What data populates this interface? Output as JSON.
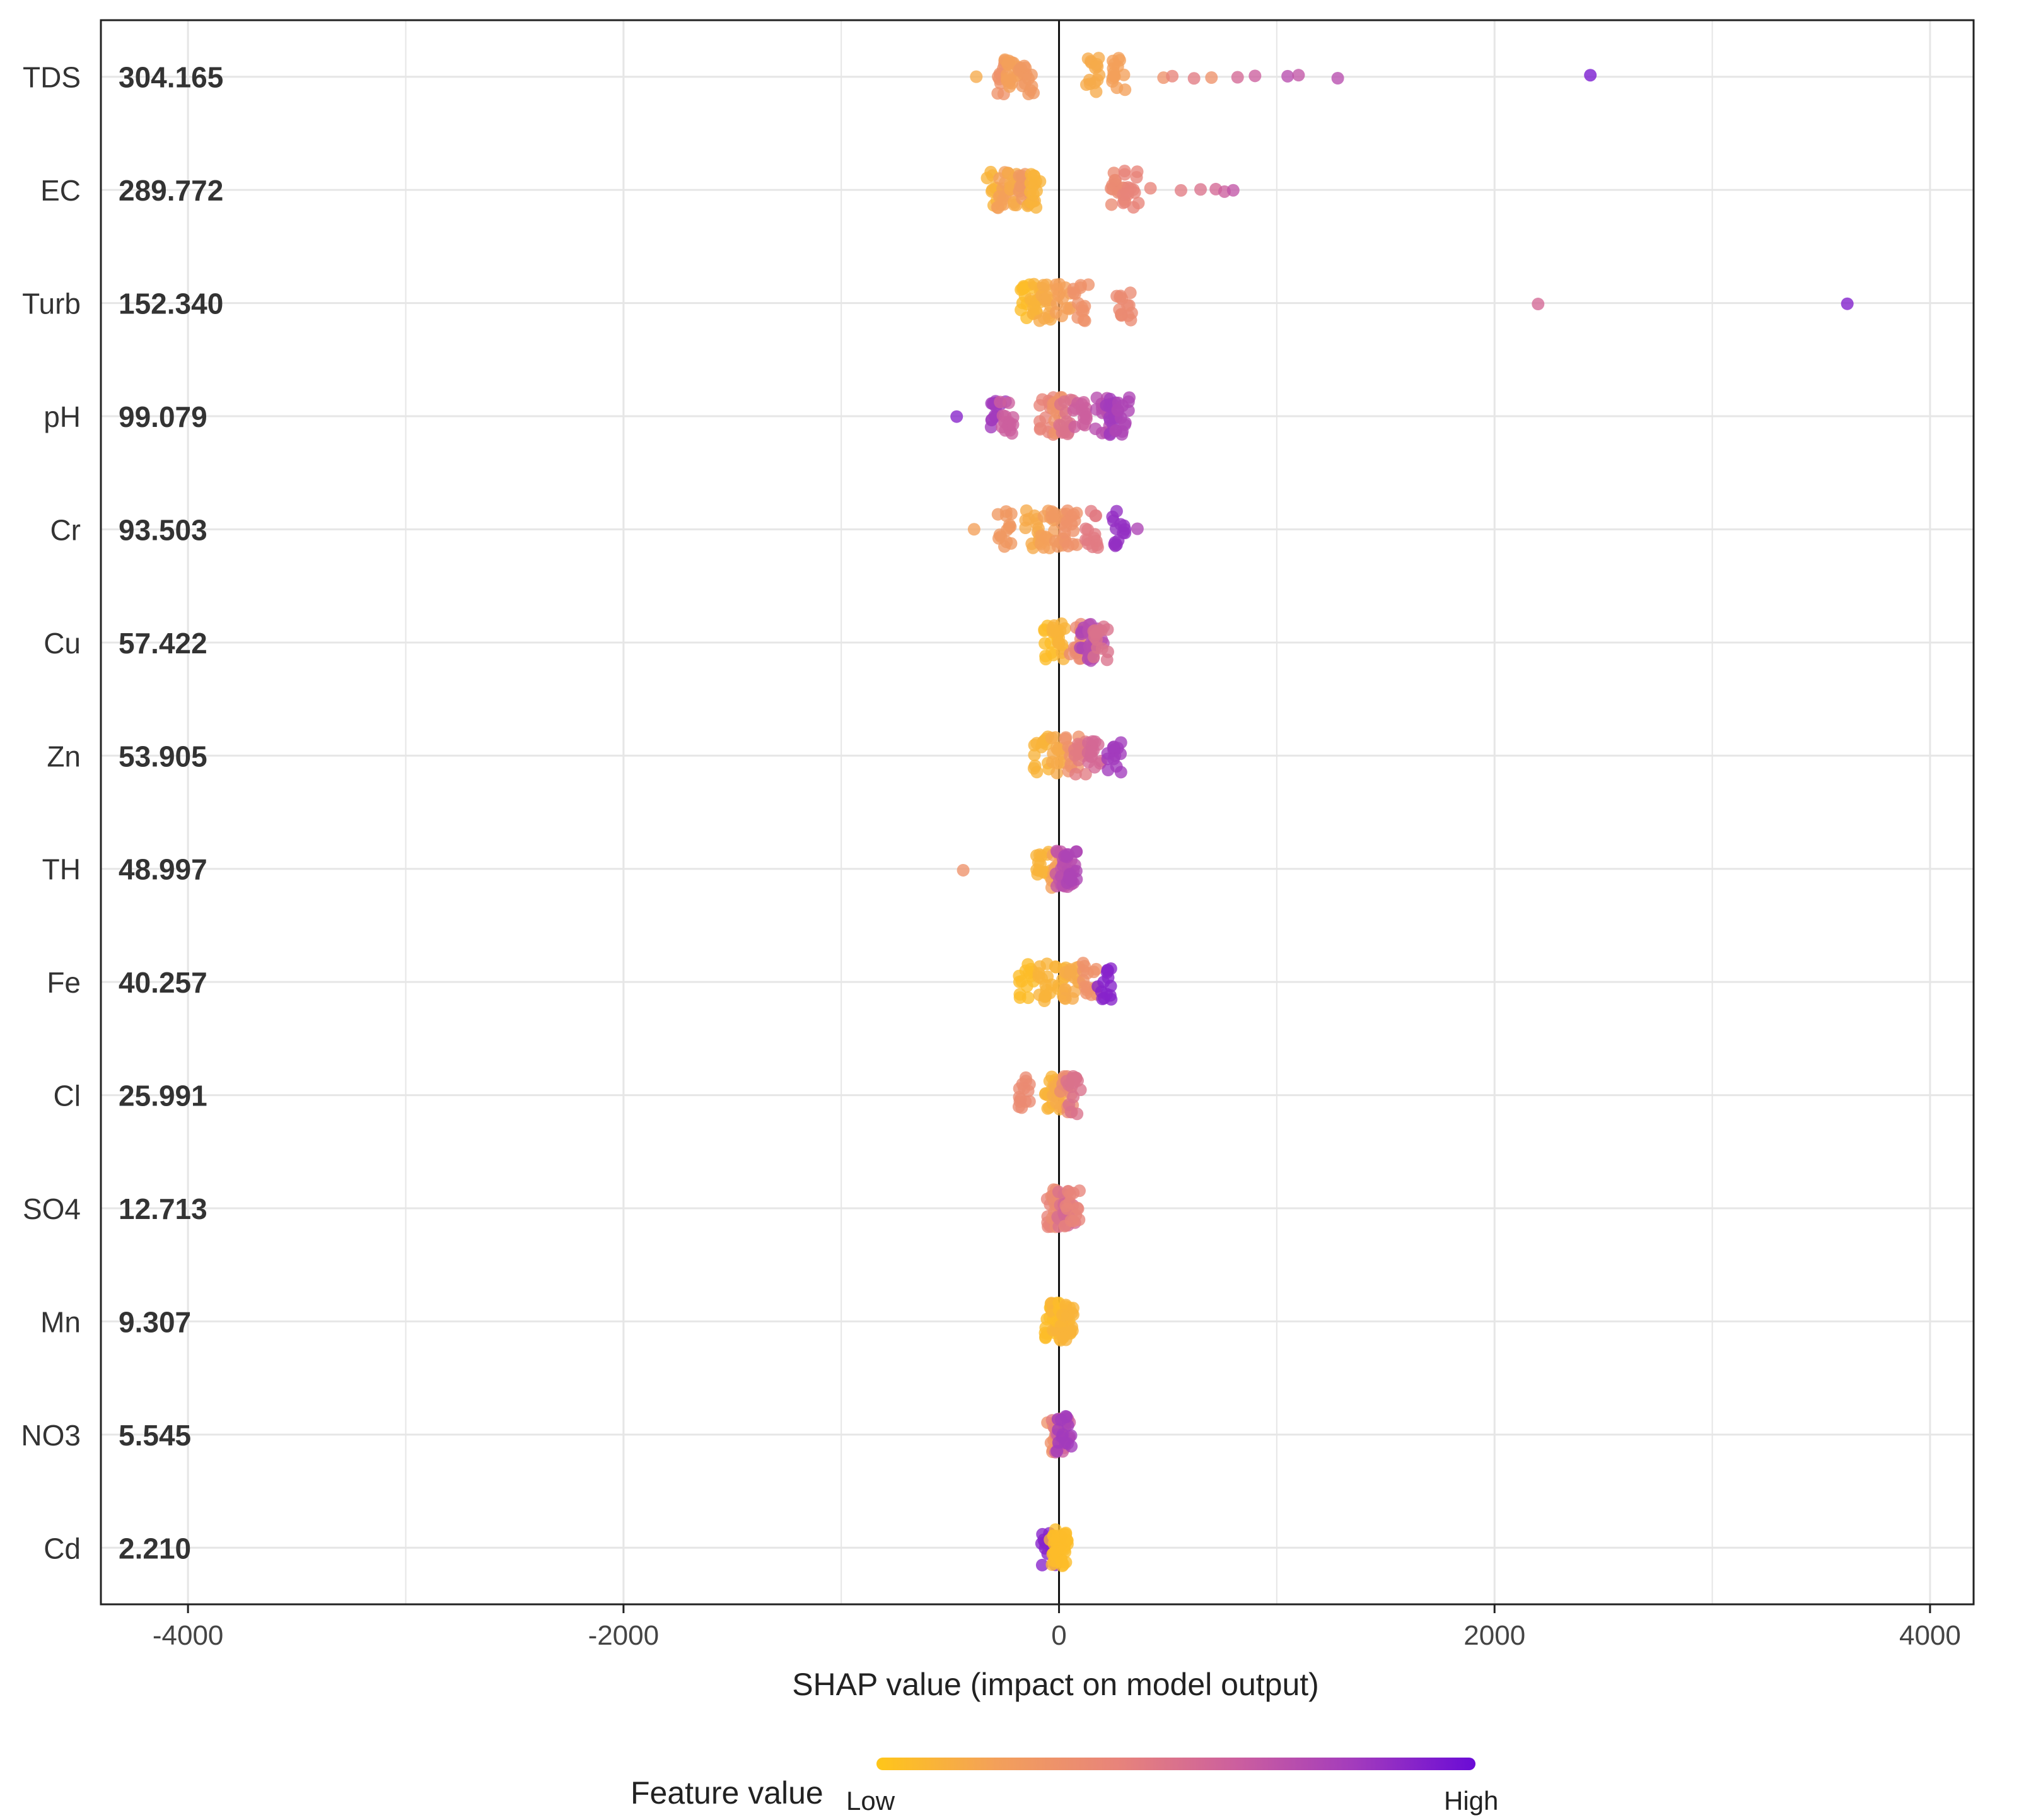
{
  "chart_data": {
    "type": "scatter",
    "subtype": "shap-beeswarm",
    "title": "",
    "xlabel": "SHAP value (impact on model output)",
    "ylabel": "",
    "xlim": [
      -4400,
      4200
    ],
    "x_ticks": [
      -4000,
      -2000,
      0,
      2000,
      4000
    ],
    "x_tick_labels": [
      "-4000",
      "-2000",
      "0",
      "2000",
      "4000"
    ],
    "grid": true,
    "legend": {
      "title": "Feature value",
      "low_label": "Low",
      "high_label": "High",
      "placement": "bottom",
      "colors": [
        "#ffc619",
        "#f3a05a",
        "#e8847a",
        "#cc5f9e",
        "#a23bbd",
        "#6a0bd6"
      ]
    },
    "features": [
      {
        "name": "TDS",
        "mean_abs_shap": "304.165",
        "points": [
          [
            -380,
            0.15
          ],
          [
            -250,
            0.3
          ],
          [
            -220,
            0.2
          ],
          [
            -150,
            0.25
          ],
          [
            150,
            0.15
          ],
          [
            280,
            0.2
          ],
          [
            480,
            0.3
          ],
          [
            520,
            0.4
          ],
          [
            620,
            0.45
          ],
          [
            700,
            0.3
          ],
          [
            820,
            0.55
          ],
          [
            900,
            0.6
          ],
          [
            1050,
            0.7
          ],
          [
            1100,
            0.65
          ],
          [
            1280,
            0.7
          ],
          [
            2440,
            0.95
          ]
        ]
      },
      {
        "name": "EC",
        "mean_abs_shap": "289.772",
        "points": [
          [
            -300,
            0.1
          ],
          [
            -250,
            0.2
          ],
          [
            -200,
            0.15
          ],
          [
            -150,
            0.25
          ],
          [
            -120,
            0.1
          ],
          [
            270,
            0.35
          ],
          [
            330,
            0.4
          ],
          [
            420,
            0.4
          ],
          [
            560,
            0.45
          ],
          [
            650,
            0.5
          ],
          [
            720,
            0.55
          ],
          [
            760,
            0.6
          ],
          [
            800,
            0.65
          ]
        ]
      },
      {
        "name": "Turb",
        "mean_abs_shap": "152.340",
        "points": [
          [
            -150,
            0.05
          ],
          [
            -100,
            0.1
          ],
          [
            -60,
            0.15
          ],
          [
            20,
            0.2
          ],
          [
            100,
            0.3
          ],
          [
            300,
            0.35
          ],
          [
            2200,
            0.55
          ],
          [
            3620,
            0.92
          ]
        ]
      },
      {
        "name": "pH",
        "mean_abs_shap": "99.079",
        "points": [
          [
            -470,
            0.9
          ],
          [
            -280,
            0.8
          ],
          [
            -240,
            0.6
          ],
          [
            -60,
            0.4
          ],
          [
            0,
            0.3
          ],
          [
            30,
            0.5
          ],
          [
            100,
            0.6
          ],
          [
            200,
            0.7
          ],
          [
            250,
            0.8
          ],
          [
            290,
            0.75
          ]
        ]
      },
      {
        "name": "Cr",
        "mean_abs_shap": "93.503",
        "points": [
          [
            -390,
            0.2
          ],
          [
            -250,
            0.25
          ],
          [
            -120,
            0.15
          ],
          [
            -50,
            0.2
          ],
          [
            0,
            0.25
          ],
          [
            60,
            0.3
          ],
          [
            150,
            0.45
          ],
          [
            280,
            0.85
          ],
          [
            360,
            0.75
          ]
        ]
      },
      {
        "name": "Cu",
        "mean_abs_shap": "57.422",
        "points": [
          [
            -40,
            0.05
          ],
          [
            0,
            0.1
          ],
          [
            80,
            0.35
          ],
          [
            130,
            0.75
          ],
          [
            170,
            0.7
          ],
          [
            190,
            0.5
          ]
        ]
      },
      {
        "name": "Zn",
        "mean_abs_shap": "53.905",
        "points": [
          [
            -80,
            0.1
          ],
          [
            0,
            0.15
          ],
          [
            60,
            0.3
          ],
          [
            100,
            0.45
          ],
          [
            160,
            0.55
          ],
          [
            250,
            0.8
          ]
        ]
      },
      {
        "name": "TH",
        "mean_abs_shap": "48.997",
        "points": [
          [
            -440,
            0.3
          ],
          [
            -70,
            0.1
          ],
          [
            0,
            0.2
          ],
          [
            20,
            0.65
          ],
          [
            40,
            0.7
          ],
          [
            60,
            0.75
          ]
        ]
      },
      {
        "name": "Fe",
        "mean_abs_shap": "40.257",
        "points": [
          [
            -150,
            0.05
          ],
          [
            -60,
            0.1
          ],
          [
            0,
            0.1
          ],
          [
            60,
            0.15
          ],
          [
            140,
            0.3
          ],
          [
            210,
            0.9
          ]
        ]
      },
      {
        "name": "Cl",
        "mean_abs_shap": "25.991",
        "points": [
          [
            -150,
            0.35
          ],
          [
            -30,
            0.1
          ],
          [
            0,
            0.15
          ],
          [
            40,
            0.35
          ],
          [
            70,
            0.5
          ]
        ]
      },
      {
        "name": "SO4",
        "mean_abs_shap": "12.713",
        "points": [
          [
            -20,
            0.4
          ],
          [
            0,
            0.35
          ],
          [
            20,
            0.5
          ],
          [
            40,
            0.55
          ],
          [
            60,
            0.4
          ]
        ]
      },
      {
        "name": "Mn",
        "mean_abs_shap": "9.307",
        "points": [
          [
            -30,
            0.05
          ],
          [
            -10,
            0.05
          ],
          [
            0,
            0.1
          ],
          [
            20,
            0.05
          ],
          [
            30,
            0.1
          ]
        ]
      },
      {
        "name": "NO3",
        "mean_abs_shap": "5.545",
        "points": [
          [
            -20,
            0.3
          ],
          [
            0,
            0.45
          ],
          [
            15,
            0.6
          ],
          [
            25,
            0.8
          ]
        ]
      },
      {
        "name": "Cd",
        "mean_abs_shap": "2.210",
        "points": [
          [
            -50,
            0.9
          ],
          [
            -10,
            0.1
          ],
          [
            0,
            0.05
          ],
          [
            10,
            0.05
          ]
        ]
      }
    ]
  }
}
